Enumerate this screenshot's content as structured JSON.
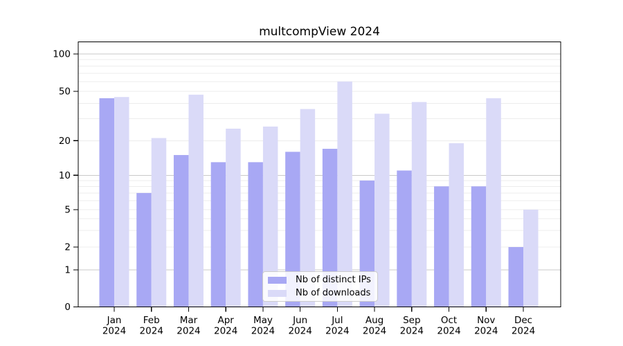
{
  "chart_data": {
    "type": "bar",
    "title": "multcompView 2024",
    "categories": [
      "Jan",
      "Feb",
      "Mar",
      "Apr",
      "May",
      "Jun",
      "Jul",
      "Aug",
      "Sep",
      "Oct",
      "Nov",
      "Dec"
    ],
    "year": "2024",
    "series": [
      {
        "name": "Nb of distinct IPs",
        "color": "#a8a8f4",
        "values": [
          44,
          7,
          15,
          13,
          13,
          16,
          17,
          9,
          11,
          8,
          8,
          2
        ]
      },
      {
        "name": "Nb of downloads",
        "color": "#dadaf8",
        "values": [
          45,
          21,
          47,
          25,
          26,
          36,
          60,
          33,
          41,
          19,
          44,
          5
        ]
      }
    ],
    "y_axis": {
      "scale": "log-with-zero-baseline",
      "labeled_ticks": [
        100,
        50,
        20,
        10,
        5,
        2,
        1,
        0
      ],
      "major_gridlines": [
        1,
        10,
        100
      ],
      "minor_gridlines": [
        3,
        4,
        6,
        7,
        8,
        9,
        30,
        40,
        60,
        70,
        80,
        90
      ],
      "top": 100
    },
    "xlabel": "",
    "ylabel": "",
    "grid": true,
    "legend_position": "lower center",
    "colors": {
      "major_grid": "#c9c9c9",
      "minor_grid": "#ececec",
      "spine": "#000000",
      "text": "#000000"
    }
  }
}
